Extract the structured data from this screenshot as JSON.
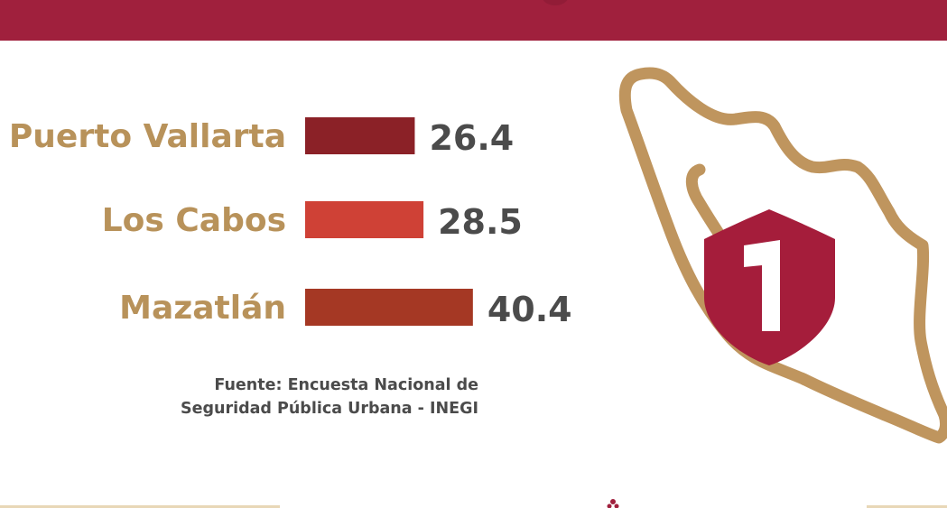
{
  "colors": {
    "header": "#a0203d",
    "label_gold": "#b8925a",
    "value_gray": "#4b4b4b",
    "map_gold": "#bf955e",
    "shield": "#a51d3b"
  },
  "chart_data": {
    "type": "bar",
    "orientation": "horizontal",
    "categories": [
      "Puerto Vallarta",
      "Los Cabos",
      "Mazatlán"
    ],
    "values": [
      26.4,
      28.5,
      40.4
    ],
    "value_labels": [
      "26.4",
      "28.5",
      "40.4"
    ],
    "bar_colors": [
      "#8b2127",
      "#cf4136",
      "#a53824"
    ],
    "grid": false,
    "legend": "none"
  },
  "source_lines": [
    "Fuente: Encuesta Nacional de",
    "Seguridad Pública Urbana - INEGI"
  ],
  "badge": {
    "number": "1"
  },
  "icons": {
    "map": "mexico-map-outline",
    "shield": "shield-icon"
  }
}
